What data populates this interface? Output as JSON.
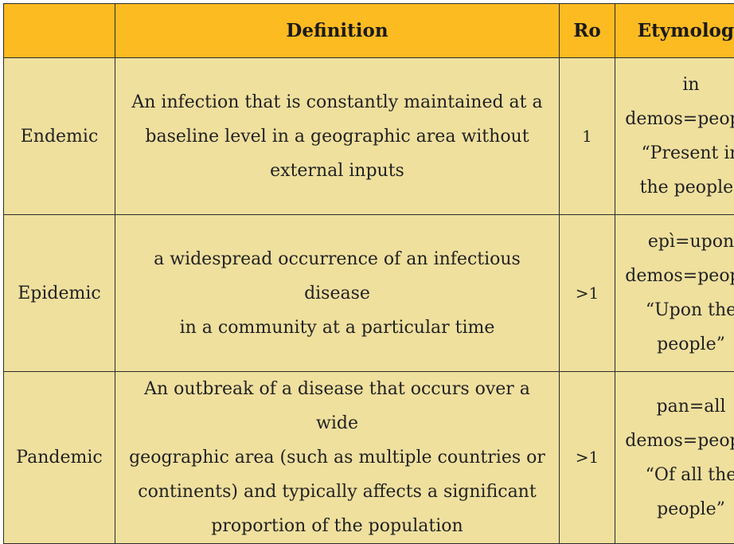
{
  "header": {
    "term": "",
    "definition": "Definition",
    "ro": "Ro",
    "etymology": "Etymology"
  },
  "rows": [
    {
      "term": "Endemic",
      "definition_lines": [
        "An infection that is constantly maintained at a",
        "baseline level in a geographic area without",
        "external inputs"
      ],
      "ro": "1",
      "etymology_lines": [
        "in",
        "demos=people",
        "“Present in",
        "the people”"
      ]
    },
    {
      "term": "Epidemic",
      "definition_lines": [
        "a widespread occurrence of an infectious disease",
        "in a community at a particular time"
      ],
      "ro": ">1",
      "etymology_lines": [
        "epì=upon",
        "demos=people",
        "“Upon the",
        "people”"
      ]
    },
    {
      "term": "Pandemic",
      "definition_lines": [
        "An outbreak of a disease that occurs over a wide",
        "geographic area (such as multiple countries or",
        "continents) and typically affects a significant",
        "proportion of the population"
      ],
      "ro": ">1",
      "etymology_lines": [
        "pan=all",
        "demos=people",
        "“Of all the",
        "people”"
      ]
    }
  ],
  "colors": {
    "header_bg": "#fdbb22",
    "body_bg": "#efe09e",
    "border": "#2b2b2b"
  }
}
